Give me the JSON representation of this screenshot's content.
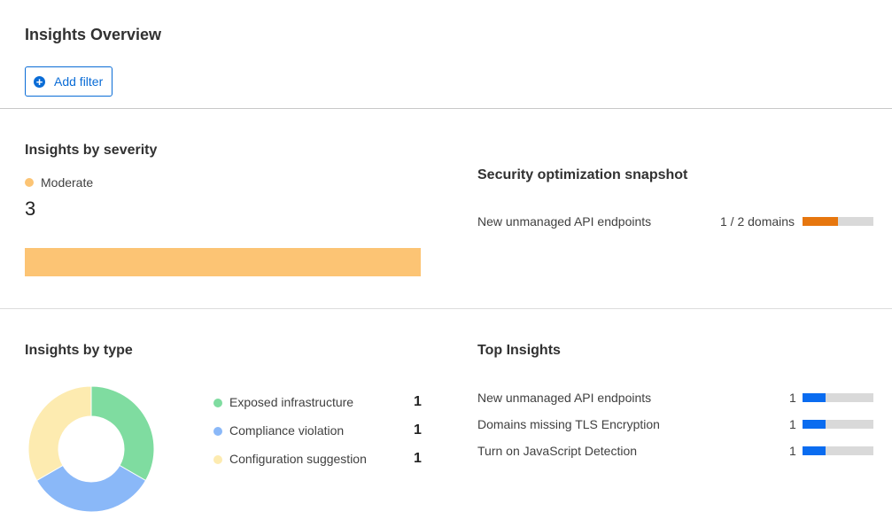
{
  "header": {
    "title": "Insights Overview",
    "add_filter_label": "Add filter",
    "add_filter_icon": "plus-circle-icon"
  },
  "severity": {
    "title": "Insights by severity",
    "legend_label": "Moderate",
    "legend_color": "#fcc474",
    "count": "3",
    "bar_fraction": 1.0
  },
  "snapshot": {
    "title": "Security optimization snapshot",
    "items": [
      {
        "label": "New unmanaged API endpoints",
        "value": "1 / 2 domains",
        "fraction": 0.5,
        "color": "#e6760e"
      }
    ]
  },
  "by_type": {
    "title": "Insights by type",
    "items": [
      {
        "label": "Exposed infrastructure",
        "count": "1",
        "color": "#7fdca0"
      },
      {
        "label": "Compliance violation",
        "count": "1",
        "color": "#8ab8f8"
      },
      {
        "label": "Configuration suggestion",
        "count": "1",
        "color": "#fdebb0"
      }
    ]
  },
  "top": {
    "title": "Top Insights",
    "color": "#0a6cf0",
    "items": [
      {
        "label": "New unmanaged API endpoints",
        "count": "1",
        "fraction": 0.33
      },
      {
        "label": "Domains missing TLS Encryption",
        "count": "1",
        "fraction": 0.33
      },
      {
        "label": "Turn on JavaScript Detection",
        "count": "1",
        "fraction": 0.33
      }
    ]
  },
  "chart_data": {
    "type": "pie",
    "donut": true,
    "categories": [
      "Exposed infrastructure",
      "Compliance violation",
      "Configuration suggestion"
    ],
    "values": [
      1,
      1,
      1
    ],
    "colors": [
      "#7fdca0",
      "#8ab8f8",
      "#fdebb0"
    ]
  }
}
